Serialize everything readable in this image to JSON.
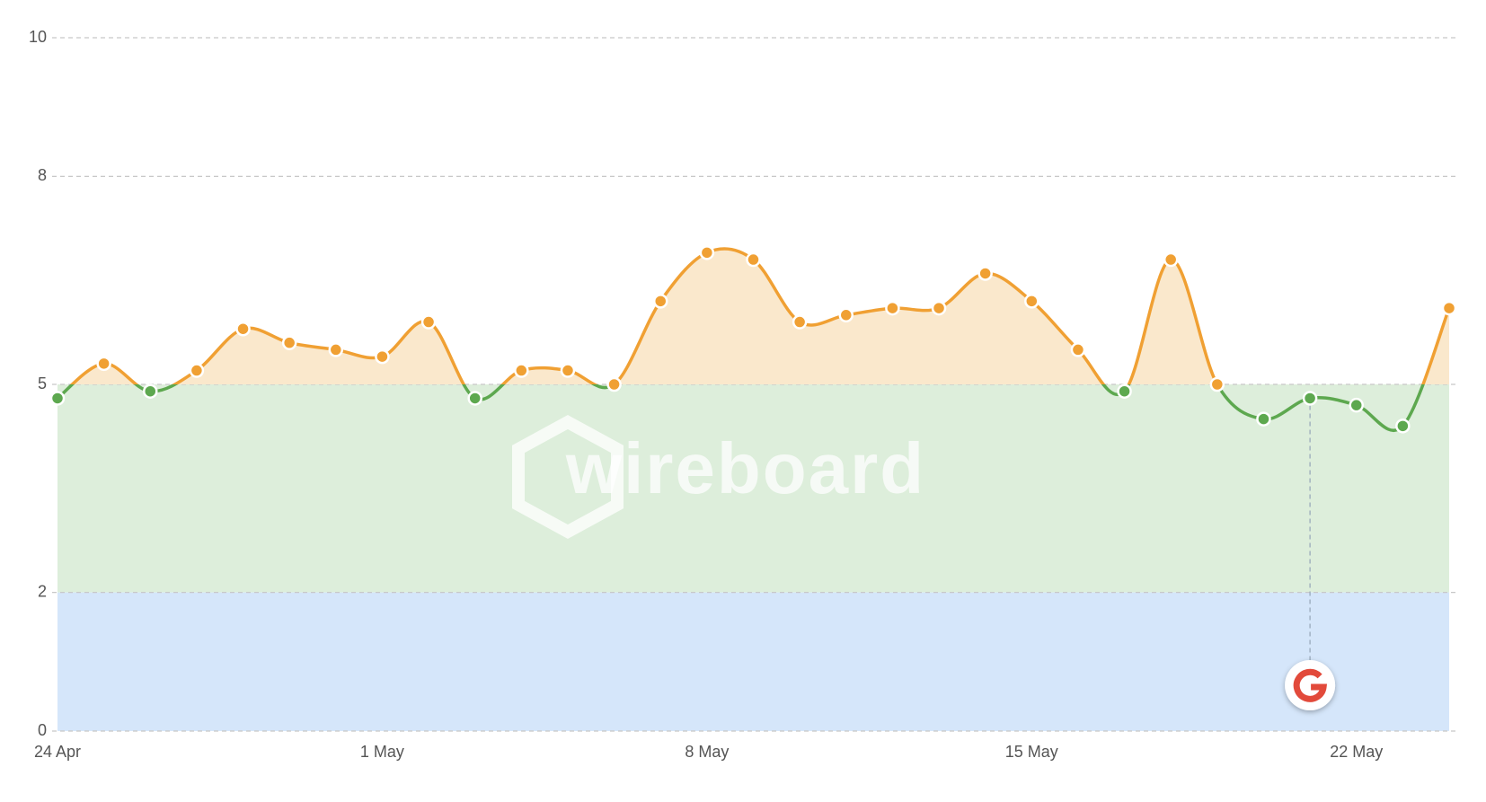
{
  "chart_data": {
    "type": "line",
    "categories": [
      "24 Apr",
      null,
      null,
      null,
      null,
      null,
      null,
      "1 May",
      null,
      null,
      null,
      null,
      null,
      null,
      "8 May",
      null,
      null,
      null,
      null,
      null,
      null,
      "15 May",
      null,
      null,
      null,
      null,
      null,
      null,
      "22 May",
      null,
      null
    ],
    "series": [
      {
        "values": [
          4.8,
          5.3,
          4.9,
          5.2,
          5.8,
          5.6,
          5.5,
          5.4,
          5.9,
          4.8,
          5.2,
          5.2,
          5.0,
          6.2,
          6.9,
          6.8,
          5.9,
          6.0,
          6.1,
          6.1,
          6.6,
          6.2,
          5.5,
          4.9,
          6.8,
          5.0,
          4.5,
          4.8,
          4.7,
          4.4,
          6.1
        ]
      }
    ],
    "threshold": 5,
    "color_above": "#f0a033",
    "color_below": "#5da84f",
    "fill_above": "#fae8cc",
    "bands": [
      {
        "from": 0,
        "to": 2,
        "color": "#d5e6fa"
      },
      {
        "from": 2,
        "to": 5,
        "color": "#ddeedb"
      }
    ],
    "ylim": [
      0,
      10
    ],
    "yticks": [
      0,
      2,
      5,
      8,
      10
    ],
    "grid": true,
    "watermark": "wireboard"
  }
}
